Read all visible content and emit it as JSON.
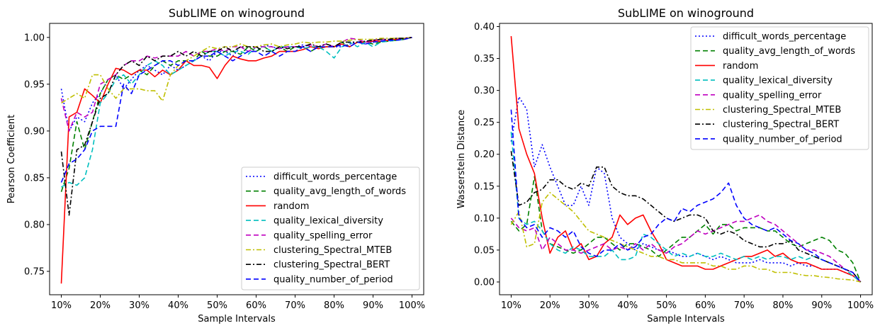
{
  "chart_data": [
    {
      "type": "line",
      "title": "SubLIME on winoground",
      "xlabel": "Sample Intervals",
      "ylabel": "Pearson Coefficient",
      "xlim": [
        7,
        103
      ],
      "ylim": [
        0.725,
        1.015
      ],
      "xticks": [
        10,
        20,
        30,
        40,
        50,
        60,
        70,
        80,
        90,
        100
      ],
      "xtick_labels": [
        "10%",
        "20%",
        "30%",
        "40%",
        "50%",
        "60%",
        "70%",
        "80%",
        "90%",
        "100%"
      ],
      "yticks": [
        0.75,
        0.8,
        0.85,
        0.9,
        0.95,
        1.0
      ],
      "ytick_labels": [
        "0.75",
        "0.80",
        "0.85",
        "0.90",
        "0.95",
        "1.00"
      ],
      "legend_position": "lower-right",
      "x": [
        10,
        12,
        14,
        16,
        18,
        20,
        22,
        24,
        26,
        28,
        30,
        32,
        34,
        36,
        38,
        40,
        42,
        44,
        46,
        48,
        50,
        52,
        54,
        56,
        58,
        60,
        62,
        64,
        66,
        68,
        70,
        72,
        74,
        76,
        78,
        80,
        82,
        84,
        86,
        88,
        90,
        92,
        94,
        96,
        98,
        100
      ],
      "series": [
        {
          "name": "difficult_words_percentage",
          "color": "#0000ff",
          "dash": "2,3",
          "values": [
            0.945,
            0.9,
            0.915,
            0.91,
            0.93,
            0.94,
            0.955,
            0.96,
            0.945,
            0.955,
            0.965,
            0.97,
            0.965,
            0.96,
            0.97,
            0.965,
            0.97,
            0.975,
            0.98,
            0.975,
            0.985,
            0.985,
            0.98,
            0.99,
            0.985,
            0.985,
            0.992,
            0.99,
            0.988,
            0.99,
            0.99,
            0.992,
            0.99,
            0.99,
            0.993,
            0.99,
            0.99,
            0.993,
            0.995,
            0.993,
            0.995,
            0.996,
            0.997,
            0.997,
            0.998,
            1.0
          ]
        },
        {
          "name": "quality_avg_length_of_words",
          "color": "#008000",
          "dash": "7,4",
          "values": [
            0.835,
            0.86,
            0.91,
            0.88,
            0.91,
            0.94,
            0.955,
            0.96,
            0.955,
            0.96,
            0.965,
            0.96,
            0.97,
            0.975,
            0.97,
            0.975,
            0.975,
            0.975,
            0.985,
            0.98,
            0.98,
            0.985,
            0.985,
            0.982,
            0.99,
            0.985,
            0.99,
            0.985,
            0.99,
            0.985,
            0.99,
            0.99,
            0.985,
            0.99,
            0.99,
            0.99,
            0.995,
            0.99,
            0.995,
            0.995,
            0.993,
            0.995,
            0.996,
            0.997,
            0.998,
            1.0
          ]
        },
        {
          "name": "random",
          "color": "#ff0000",
          "dash": "",
          "values": [
            0.737,
            0.915,
            0.92,
            0.945,
            0.938,
            0.93,
            0.95,
            0.967,
            0.965,
            0.96,
            0.965,
            0.965,
            0.958,
            0.965,
            0.96,
            0.965,
            0.975,
            0.97,
            0.97,
            0.968,
            0.956,
            0.97,
            0.98,
            0.977,
            0.975,
            0.975,
            0.978,
            0.98,
            0.985,
            0.985,
            0.985,
            0.987,
            0.99,
            0.988,
            0.99,
            0.99,
            0.993,
            0.99,
            0.995,
            0.995,
            0.996,
            0.996,
            0.997,
            0.998,
            0.999,
            1.0
          ]
        },
        {
          "name": "quality_lexical_diversity",
          "color": "#00bfbf",
          "dash": "7,4",
          "values": [
            0.84,
            0.845,
            0.842,
            0.85,
            0.88,
            0.93,
            0.94,
            0.955,
            0.96,
            0.95,
            0.96,
            0.97,
            0.975,
            0.97,
            0.96,
            0.965,
            0.97,
            0.975,
            0.98,
            0.985,
            0.985,
            0.98,
            0.985,
            0.985,
            0.982,
            0.99,
            0.99,
            0.985,
            0.99,
            0.99,
            0.99,
            0.988,
            0.99,
            0.99,
            0.985,
            0.978,
            0.99,
            0.995,
            0.99,
            0.995,
            0.99,
            0.995,
            0.996,
            0.997,
            0.998,
            1.0
          ]
        },
        {
          "name": "quality_spelling_error",
          "color": "#bf00bf",
          "dash": "7,4",
          "values": [
            0.935,
            0.9,
            0.92,
            0.915,
            0.92,
            0.95,
            0.955,
            0.96,
            0.97,
            0.975,
            0.975,
            0.98,
            0.978,
            0.98,
            0.98,
            0.98,
            0.985,
            0.98,
            0.985,
            0.985,
            0.988,
            0.985,
            0.99,
            0.99,
            0.985,
            0.99,
            0.99,
            0.99,
            0.988,
            0.99,
            0.99,
            0.99,
            0.992,
            0.99,
            0.993,
            0.99,
            0.995,
            0.999,
            0.998,
            0.995,
            0.997,
            0.998,
            0.998,
            0.999,
            0.998,
            1.0
          ]
        },
        {
          "name": "clustering_Spectral_MTEB",
          "color": "#bfbf00",
          "dash": "7,3,2,3",
          "values": [
            0.93,
            0.935,
            0.94,
            0.935,
            0.96,
            0.96,
            0.945,
            0.935,
            0.945,
            0.945,
            0.945,
            0.943,
            0.943,
            0.932,
            0.96,
            0.97,
            0.975,
            0.98,
            0.985,
            0.99,
            0.988,
            0.99,
            0.99,
            0.993,
            0.99,
            0.99,
            0.992,
            0.993,
            0.99,
            0.992,
            0.993,
            0.995,
            0.994,
            0.995,
            0.995,
            0.996,
            0.996,
            0.997,
            0.998,
            0.998,
            0.998,
            0.999,
            0.999,
            0.999,
            0.999,
            1.0
          ]
        },
        {
          "name": "clustering_Spectral_BERT",
          "color": "#000000",
          "dash": "7,3,2,3",
          "values": [
            0.878,
            0.81,
            0.88,
            0.885,
            0.91,
            0.935,
            0.94,
            0.96,
            0.97,
            0.975,
            0.97,
            0.98,
            0.975,
            0.98,
            0.98,
            0.985,
            0.98,
            0.985,
            0.98,
            0.985,
            0.985,
            0.99,
            0.985,
            0.99,
            0.99,
            0.99,
            0.985,
            0.985,
            0.99,
            0.988,
            0.99,
            0.99,
            0.993,
            0.99,
            0.993,
            0.99,
            0.995,
            0.995,
            0.995,
            0.996,
            0.997,
            0.998,
            0.998,
            0.999,
            0.999,
            1.0
          ]
        },
        {
          "name": "quality_number_of_period",
          "color": "#0000ff",
          "dash": "7,4",
          "values": [
            0.845,
            0.865,
            0.87,
            0.88,
            0.9,
            0.905,
            0.905,
            0.905,
            0.95,
            0.94,
            0.96,
            0.965,
            0.97,
            0.975,
            0.975,
            0.97,
            0.975,
            0.975,
            0.98,
            0.98,
            0.985,
            0.98,
            0.975,
            0.98,
            0.985,
            0.985,
            0.98,
            0.985,
            0.98,
            0.985,
            0.985,
            0.99,
            0.985,
            0.99,
            0.99,
            0.99,
            0.992,
            0.99,
            0.995,
            0.993,
            0.995,
            0.996,
            0.997,
            0.997,
            0.998,
            1.0
          ]
        }
      ]
    },
    {
      "type": "line",
      "title": "SubLIME on winoground",
      "xlabel": "Sample Intervals",
      "ylabel": "Wasserstein Distance",
      "xlim": [
        7,
        103
      ],
      "ylim": [
        -0.02,
        0.405
      ],
      "xticks": [
        10,
        20,
        30,
        40,
        50,
        60,
        70,
        80,
        90,
        100
      ],
      "xtick_labels": [
        "10%",
        "20%",
        "30%",
        "40%",
        "50%",
        "60%",
        "70%",
        "80%",
        "90%",
        "100%"
      ],
      "yticks": [
        0.0,
        0.05,
        0.1,
        0.15,
        0.2,
        0.25,
        0.3,
        0.35,
        0.4
      ],
      "ytick_labels": [
        "0.00",
        "0.05",
        "0.10",
        "0.15",
        "0.20",
        "0.25",
        "0.30",
        "0.35",
        "0.40"
      ],
      "legend_position": "upper-right",
      "x": [
        10,
        12,
        14,
        16,
        18,
        20,
        22,
        24,
        26,
        28,
        30,
        32,
        34,
        36,
        38,
        40,
        42,
        44,
        46,
        48,
        50,
        52,
        54,
        56,
        58,
        60,
        62,
        64,
        66,
        68,
        70,
        72,
        74,
        76,
        78,
        80,
        82,
        84,
        86,
        88,
        90,
        92,
        94,
        96,
        98,
        100
      ],
      "series": [
        {
          "name": "difficult_words_percentage",
          "color": "#0000ff",
          "dash": "2,3",
          "values": [
            0.22,
            0.29,
            0.27,
            0.18,
            0.215,
            0.18,
            0.15,
            0.12,
            0.12,
            0.15,
            0.12,
            0.18,
            0.17,
            0.1,
            0.07,
            0.06,
            0.05,
            0.06,
            0.055,
            0.05,
            0.05,
            0.045,
            0.04,
            0.04,
            0.045,
            0.04,
            0.035,
            0.04,
            0.035,
            0.03,
            0.03,
            0.03,
            0.035,
            0.03,
            0.03,
            0.03,
            0.025,
            0.03,
            0.025,
            0.025,
            0.02,
            0.02,
            0.02,
            0.015,
            0.01,
            0.0
          ]
        },
        {
          "name": "quality_avg_length_of_words",
          "color": "#008000",
          "dash": "7,4",
          "values": [
            0.095,
            0.08,
            0.09,
            0.165,
            0.08,
            0.06,
            0.055,
            0.05,
            0.045,
            0.05,
            0.06,
            0.07,
            0.07,
            0.06,
            0.05,
            0.06,
            0.06,
            0.055,
            0.05,
            0.04,
            0.05,
            0.06,
            0.07,
            0.07,
            0.08,
            0.09,
            0.075,
            0.09,
            0.09,
            0.08,
            0.085,
            0.085,
            0.085,
            0.08,
            0.08,
            0.07,
            0.06,
            0.055,
            0.06,
            0.065,
            0.07,
            0.065,
            0.05,
            0.045,
            0.03,
            0.0
          ]
        },
        {
          "name": "random",
          "color": "#ff0000",
          "dash": "",
          "values": [
            0.385,
            0.24,
            0.2,
            0.17,
            0.1,
            0.045,
            0.07,
            0.08,
            0.05,
            0.06,
            0.035,
            0.04,
            0.06,
            0.07,
            0.105,
            0.09,
            0.1,
            0.105,
            0.08,
            0.06,
            0.035,
            0.03,
            0.025,
            0.025,
            0.025,
            0.02,
            0.02,
            0.025,
            0.03,
            0.035,
            0.04,
            0.04,
            0.045,
            0.05,
            0.04,
            0.045,
            0.035,
            0.03,
            0.03,
            0.025,
            0.02,
            0.02,
            0.02,
            0.015,
            0.01,
            0.0
          ]
        },
        {
          "name": "quality_lexical_diversity",
          "color": "#00bfbf",
          "dash": "7,4",
          "values": [
            0.235,
            0.1,
            0.09,
            0.095,
            0.08,
            0.06,
            0.05,
            0.045,
            0.055,
            0.05,
            0.04,
            0.04,
            0.04,
            0.05,
            0.035,
            0.035,
            0.04,
            0.075,
            0.07,
            0.06,
            0.05,
            0.04,
            0.045,
            0.04,
            0.045,
            0.04,
            0.04,
            0.045,
            0.04,
            0.035,
            0.04,
            0.035,
            0.04,
            0.035,
            0.04,
            0.04,
            0.035,
            0.04,
            0.035,
            0.04,
            0.035,
            0.03,
            0.025,
            0.02,
            0.01,
            0.0
          ]
        },
        {
          "name": "quality_spelling_error",
          "color": "#bf00bf",
          "dash": "7,4",
          "values": [
            0.1,
            0.085,
            0.08,
            0.085,
            0.05,
            0.07,
            0.06,
            0.05,
            0.05,
            0.045,
            0.05,
            0.055,
            0.06,
            0.05,
            0.055,
            0.05,
            0.06,
            0.05,
            0.06,
            0.05,
            0.045,
            0.055,
            0.06,
            0.07,
            0.08,
            0.075,
            0.08,
            0.085,
            0.09,
            0.095,
            0.095,
            0.1,
            0.105,
            0.095,
            0.09,
            0.08,
            0.07,
            0.06,
            0.05,
            0.05,
            0.045,
            0.04,
            0.03,
            0.02,
            0.015,
            0.0
          ]
        },
        {
          "name": "clustering_Spectral_MTEB",
          "color": "#bfbf00",
          "dash": "7,3,2,3",
          "values": [
            0.09,
            0.11,
            0.055,
            0.06,
            0.125,
            0.14,
            0.13,
            0.12,
            0.11,
            0.095,
            0.08,
            0.075,
            0.07,
            0.065,
            0.06,
            0.055,
            0.05,
            0.045,
            0.04,
            0.04,
            0.035,
            0.035,
            0.03,
            0.03,
            0.03,
            0.03,
            0.025,
            0.025,
            0.02,
            0.02,
            0.025,
            0.025,
            0.02,
            0.02,
            0.015,
            0.015,
            0.015,
            0.012,
            0.01,
            0.01,
            0.008,
            0.007,
            0.005,
            0.004,
            0.003,
            0.0
          ]
        },
        {
          "name": "clustering_Spectral_BERT",
          "color": "#000000",
          "dash": "7,3,2,3",
          "values": [
            0.205,
            0.12,
            0.125,
            0.14,
            0.145,
            0.16,
            0.16,
            0.15,
            0.145,
            0.155,
            0.15,
            0.18,
            0.18,
            0.15,
            0.14,
            0.135,
            0.135,
            0.13,
            0.12,
            0.11,
            0.1,
            0.095,
            0.1,
            0.105,
            0.105,
            0.1,
            0.08,
            0.075,
            0.08,
            0.075,
            0.065,
            0.06,
            0.055,
            0.055,
            0.06,
            0.06,
            0.065,
            0.05,
            0.045,
            0.04,
            0.035,
            0.03,
            0.025,
            0.02,
            0.015,
            0.0
          ]
        },
        {
          "name": "quality_number_of_period",
          "color": "#0000ff",
          "dash": "7,4",
          "values": [
            0.27,
            0.1,
            0.085,
            0.09,
            0.07,
            0.085,
            0.08,
            0.07,
            0.08,
            0.055,
            0.045,
            0.04,
            0.05,
            0.05,
            0.06,
            0.05,
            0.055,
            0.07,
            0.075,
            0.09,
            0.1,
            0.095,
            0.115,
            0.11,
            0.12,
            0.125,
            0.13,
            0.14,
            0.155,
            0.12,
            0.1,
            0.09,
            0.085,
            0.08,
            0.085,
            0.075,
            0.065,
            0.06,
            0.05,
            0.045,
            0.035,
            0.03,
            0.025,
            0.02,
            0.015,
            0.0
          ]
        }
      ]
    }
  ]
}
